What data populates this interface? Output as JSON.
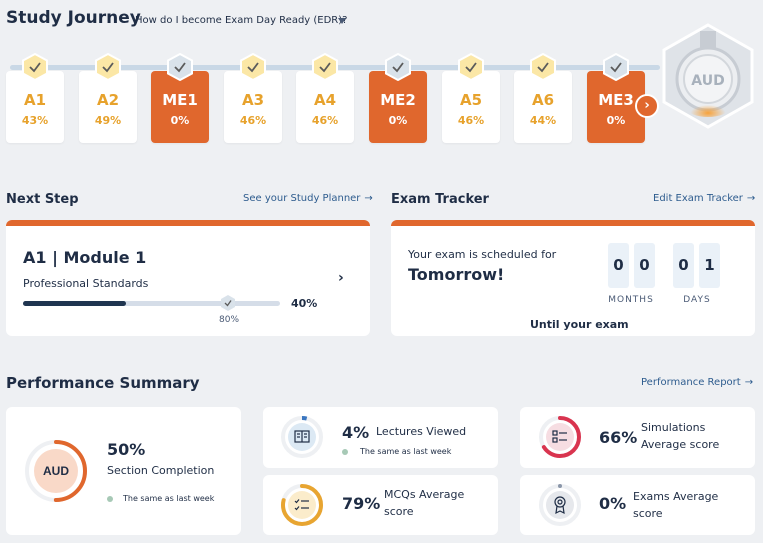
{
  "header": {
    "title": "Study Journey",
    "question": "How do I become Exam Day Ready (EDR)?"
  },
  "journey": [
    {
      "code": "A1",
      "percent": "43%",
      "type": "module"
    },
    {
      "code": "A2",
      "percent": "49%",
      "type": "module"
    },
    {
      "code": "ME1",
      "percent": "0%",
      "type": "exam"
    },
    {
      "code": "A3",
      "percent": "46%",
      "type": "module"
    },
    {
      "code": "A4",
      "percent": "46%",
      "type": "module"
    },
    {
      "code": "ME2",
      "percent": "0%",
      "type": "exam"
    },
    {
      "code": "A5",
      "percent": "46%",
      "type": "module"
    },
    {
      "code": "A6",
      "percent": "44%",
      "type": "module"
    },
    {
      "code": "ME3",
      "percent": "0%",
      "type": "exam"
    }
  ],
  "badge": {
    "label": "AUD"
  },
  "next_step": {
    "title": "Next Step",
    "link": "See your Study Planner",
    "module_title": "A1 | Module 1",
    "module_subtitle": "Professional Standards",
    "progress": 0.4,
    "progress_label": "40%",
    "target": 0.8,
    "target_label": "80%"
  },
  "exam_tracker": {
    "title": "Exam Tracker",
    "link": "Edit Exam Tracker",
    "scheduled_text": "Your exam is scheduled for",
    "when": "Tomorrow!",
    "months_digits": [
      "0",
      "0"
    ],
    "days_digits": [
      "0",
      "1"
    ],
    "months_label": "MONTHS",
    "days_label": "DAYS",
    "until_text": "Until your exam"
  },
  "performance": {
    "title": "Performance Summary",
    "link": "Performance Report",
    "section": {
      "badge": "AUD",
      "value": "50%",
      "label": "Section Completion",
      "note": "The same as last week",
      "level": 0.5
    },
    "lectures": {
      "value": "4%",
      "label": "Lectures Viewed",
      "note": "The same as last week",
      "level": 0.04,
      "icon": "book-icon"
    },
    "simulations": {
      "value": "66%",
      "label_line1": "Simulations",
      "label_line2": "Average score",
      "level": 0.66,
      "icon": "list-icon"
    },
    "mcqs": {
      "value": "79%",
      "label_line1": "MCQs Average",
      "label_line2": "score",
      "level": 0.79,
      "icon": "checklist-icon"
    },
    "exams": {
      "value": "0%",
      "label_line1": "Exams Average",
      "label_line2": "score",
      "level": 0,
      "icon": "award-icon"
    }
  },
  "colors": {
    "accent": "#e0672d",
    "module_text": "#e7a22c",
    "navy": "#1f2d45",
    "link": "#2e5c8e",
    "lectures_ring": "#3a76c0",
    "simulations_ring": "#d9344f",
    "mcqs_ring": "#e8a531",
    "section_ring": "#e0672d"
  }
}
